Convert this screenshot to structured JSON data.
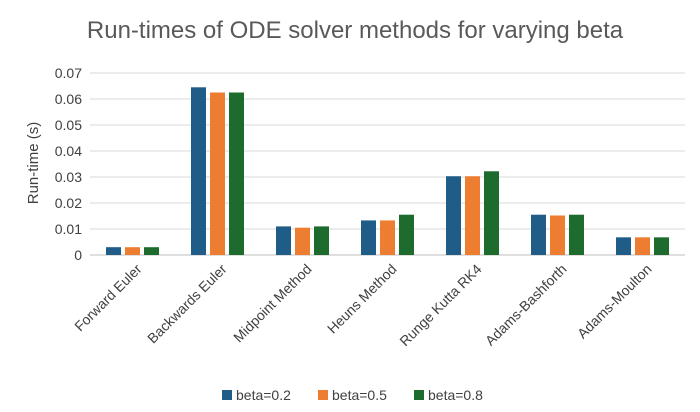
{
  "chart_data": {
    "type": "bar",
    "title": "Run-times of ODE solver methods for varying beta",
    "xlabel": "",
    "ylabel": "Run-time (s)",
    "ylim": [
      0,
      0.07
    ],
    "yticks": [
      "0",
      "0.01",
      "0.02",
      "0.03",
      "0.04",
      "0.05",
      "0.06",
      "0.07"
    ],
    "grid": true,
    "legend_position": "bottom",
    "categories": [
      "Forward Euler",
      "Backwards Euler",
      "Midpoint Method",
      "Heuns Method",
      "Runge Kutta RK4",
      "Adams-Bashforth",
      "Adams-Moulton"
    ],
    "series": [
      {
        "name": "beta=0.2",
        "color": "#1f5c88",
        "values": [
          0.003,
          0.0645,
          0.011,
          0.0133,
          0.0303,
          0.0155,
          0.0068
        ]
      },
      {
        "name": "beta=0.5",
        "color": "#ed7d31",
        "values": [
          0.003,
          0.0625,
          0.0105,
          0.0133,
          0.0303,
          0.0152,
          0.0068
        ]
      },
      {
        "name": "beta=0.8",
        "color": "#1e6b2e",
        "values": [
          0.003,
          0.0625,
          0.011,
          0.0155,
          0.0322,
          0.0155,
          0.0068
        ]
      }
    ]
  }
}
